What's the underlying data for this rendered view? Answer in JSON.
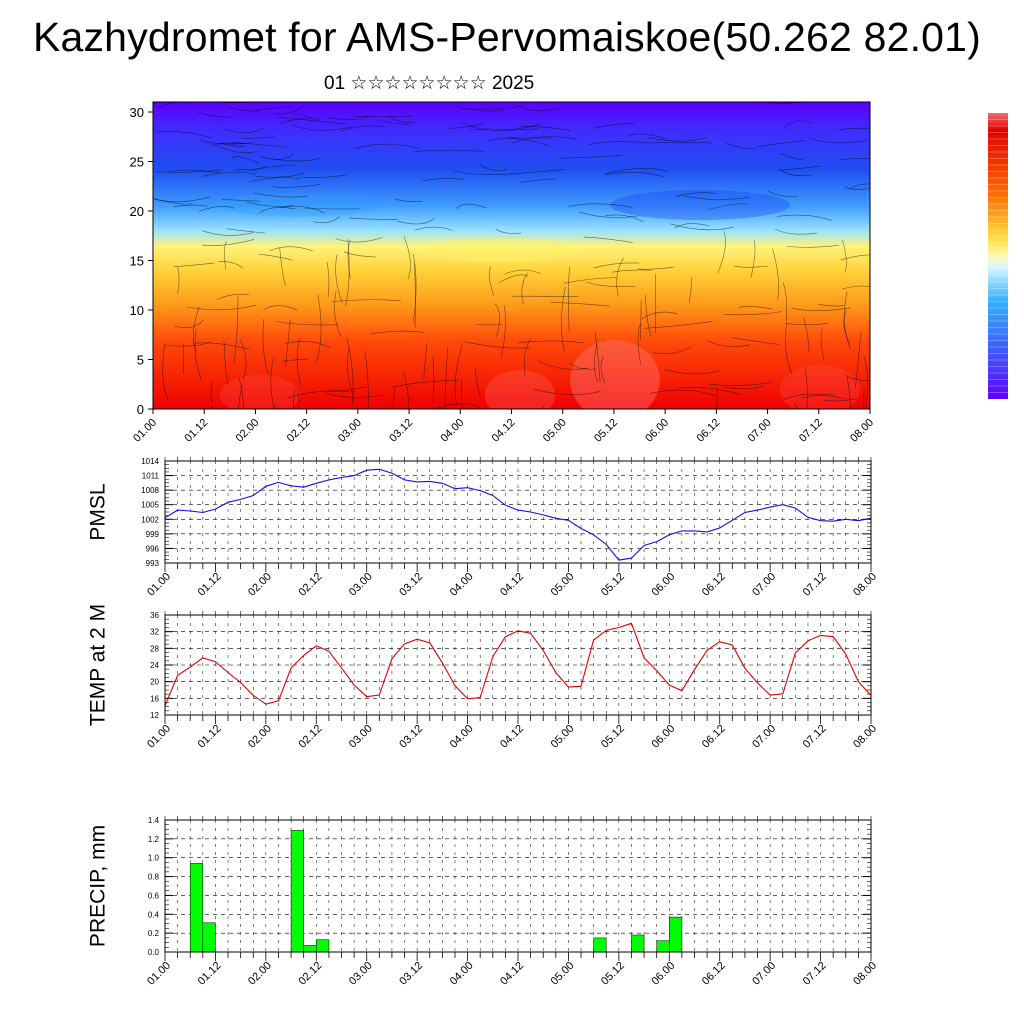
{
  "title": "Kazhydromet for AMS-Pervomaiskoe(50.262 82.01)",
  "subtitle": "01 ☆☆☆☆☆☆☆☆ 2025",
  "chart_data": [
    {
      "type": "heatmap",
      "title": "",
      "ylim": [
        0,
        30
      ],
      "yticks": [
        0,
        5,
        10,
        15,
        20,
        25,
        30
      ],
      "xticks": [
        "01.00",
        "01.12",
        "02.00",
        "02.12",
        "03.00",
        "03.12",
        "04.00",
        "04.12",
        "05.00",
        "05.12",
        "06.00",
        "06.12",
        "07.00",
        "07.12",
        "08.00"
      ],
      "overlay": "wind streamlines",
      "colorbar": "blue (top) → cyan → yellow → red (bottom), unlabeled",
      "colors": {
        "cold": "#5c00ff",
        "mid_blue": "#2a6bff",
        "cyan": "#6ad6ff",
        "yellow": "#fff05a",
        "orange": "#ff9a1a",
        "red": "#f00000"
      }
    },
    {
      "type": "line",
      "ylabel": "PMSL",
      "ylim": [
        993,
        1014
      ],
      "yticks": [
        993,
        996,
        999,
        1002,
        1005,
        1008,
        1011,
        1014
      ],
      "xticks": [
        "01.00",
        "01.12",
        "02.00",
        "02.12",
        "03.00",
        "03.12",
        "04.00",
        "04.12",
        "05.00",
        "05.12",
        "06.00",
        "06.12",
        "07.00",
        "07.12",
        "08.00"
      ],
      "color": "#1010e0",
      "x": [
        0,
        3,
        6,
        9,
        12,
        15,
        18,
        21,
        24,
        27,
        30,
        33,
        36,
        39,
        42,
        45,
        48,
        51,
        54,
        57,
        60,
        63,
        66,
        69,
        72,
        75,
        78,
        81,
        84,
        87,
        90,
        93,
        96,
        99,
        102,
        105,
        108,
        111,
        114,
        117,
        120,
        123,
        126,
        129,
        132,
        135,
        138,
        141,
        144,
        147,
        150,
        153,
        156,
        159,
        162,
        165,
        168
      ],
      "values": [
        1002.3,
        1003.9,
        1003.7,
        1003.4,
        1004.1,
        1005.5,
        1006.1,
        1006.9,
        1008.8,
        1009.6,
        1008.9,
        1008.6,
        1009.4,
        1010.1,
        1010.6,
        1011.0,
        1012.1,
        1012.3,
        1011.5,
        1010.1,
        1009.7,
        1009.8,
        1009.4,
        1008.3,
        1008.5,
        1007.9,
        1006.9,
        1004.9,
        1003.9,
        1003.5,
        1002.9,
        1002.2,
        1001.8,
        1000.1,
        998.8,
        996.8,
        993.6,
        994.0,
        996.6,
        997.4,
        998.8,
        999.6,
        999.6,
        999.4,
        1000.2,
        1001.8,
        1003.4,
        1003.9,
        1004.5,
        1005.0,
        1004.3,
        1002.4,
        1001.7,
        1001.6,
        1002.0,
        1001.7,
        1002.2
      ]
    },
    {
      "type": "line",
      "ylabel": "TEMP at 2 M",
      "ylim": [
        12,
        36
      ],
      "yticks": [
        12,
        16,
        20,
        24,
        28,
        32,
        36
      ],
      "xticks": [
        "01.00",
        "01.12",
        "02.00",
        "02.12",
        "03.00",
        "03.12",
        "04.00",
        "04.12",
        "05.00",
        "05.12",
        "06.00",
        "06.12",
        "07.00",
        "07.12",
        "08.00"
      ],
      "color": "#e00000",
      "x": [
        0,
        3,
        6,
        9,
        12,
        15,
        18,
        21,
        24,
        27,
        30,
        33,
        36,
        39,
        42,
        45,
        48,
        51,
        54,
        57,
        60,
        63,
        66,
        69,
        72,
        75,
        78,
        81,
        84,
        87,
        90,
        93,
        96,
        99,
        102,
        105,
        108,
        111,
        114,
        117,
        120,
        123,
        126,
        129,
        132,
        135,
        138,
        141,
        144,
        147,
        150,
        153,
        156,
        159,
        162,
        165,
        168
      ],
      "values": [
        14.2,
        21.5,
        23.5,
        25.7,
        24.8,
        22.2,
        19.8,
        16.7,
        14.6,
        15.4,
        23.3,
        26.3,
        28.6,
        27.3,
        23.3,
        19.2,
        16.4,
        16.8,
        25.5,
        29.1,
        30.2,
        29.3,
        24.5,
        19.0,
        15.9,
        16.2,
        26.0,
        30.8,
        32.2,
        31.6,
        27.5,
        22.2,
        18.7,
        18.9,
        30.0,
        32.3,
        33.0,
        34.0,
        25.7,
        22.6,
        19.2,
        17.8,
        22.9,
        27.5,
        29.6,
        28.8,
        23.2,
        19.7,
        16.8,
        17.1,
        26.9,
        29.8,
        31.1,
        30.8,
        26.6,
        20.0,
        16.7
      ]
    },
    {
      "type": "bar",
      "ylabel": "PRECIP, mm",
      "ylim": [
        0,
        1.4
      ],
      "yticks": [
        0.0,
        0.2,
        0.4,
        0.6,
        0.8,
        1.0,
        1.2,
        1.4
      ],
      "xticks": [
        "01.00",
        "01.12",
        "02.00",
        "02.12",
        "03.00",
        "03.12",
        "04.00",
        "04.12",
        "05.00",
        "05.12",
        "06.00",
        "06.12",
        "07.00",
        "07.12",
        "08.00"
      ],
      "color": "#00ff00",
      "x": [
        6,
        9,
        30,
        33,
        36,
        102,
        111,
        117,
        120
      ],
      "values": [
        0.94,
        0.31,
        1.29,
        0.07,
        0.13,
        0.15,
        0.18,
        0.12,
        0.37
      ]
    }
  ]
}
